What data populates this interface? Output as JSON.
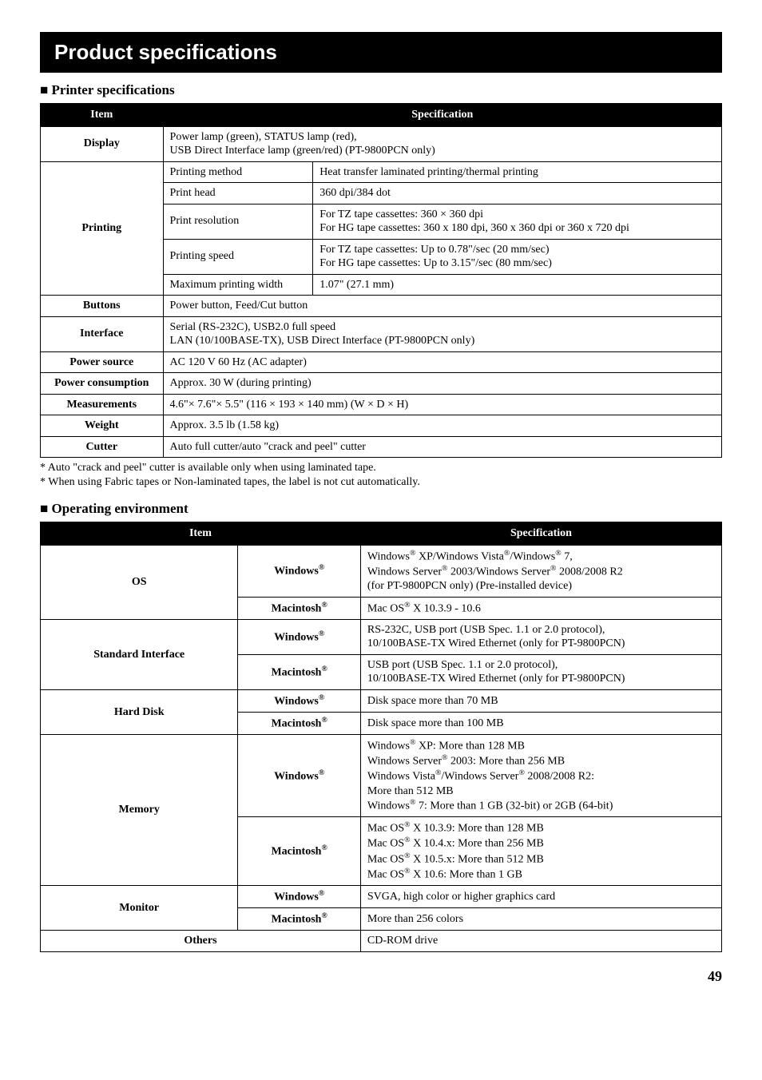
{
  "title": "Product specifications",
  "page_number": "49",
  "sections": {
    "printer": {
      "heading": "Printer specifications",
      "head_item": "Item",
      "head_spec": "Specification",
      "rows": {
        "display": {
          "label": "Display",
          "value": "Power lamp (green), STATUS lamp (red),\nUSB Direct Interface lamp (green/red) (PT-9800PCN only)"
        },
        "printing": {
          "label": "Printing",
          "method": {
            "label": "Printing method",
            "value": "Heat transfer laminated printing/thermal printing"
          },
          "head": {
            "label": "Print head",
            "value": "360 dpi/384 dot"
          },
          "res": {
            "label": "Print resolution",
            "value": "For TZ tape cassettes: 360 × 360 dpi\nFor HG tape cassettes: 360 x 180 dpi, 360 x 360 dpi or 360 x 720 dpi"
          },
          "speed": {
            "label": "Printing speed",
            "value": "For TZ tape cassettes: Up to 0.78\"/sec (20 mm/sec)\nFor HG tape cassettes: Up to 3.15\"/sec (80 mm/sec)"
          },
          "maxwidth": {
            "label": "Maximum printing width",
            "value": "1.07\" (27.1 mm)"
          }
        },
        "buttons": {
          "label": "Buttons",
          "value": "Power button, Feed/Cut button"
        },
        "interface": {
          "label": "Interface",
          "value": "Serial (RS-232C), USB2.0 full speed\nLAN (10/100BASE-TX), USB Direct Interface (PT-9800PCN only)"
        },
        "power_source": {
          "label": "Power source",
          "value": "AC 120 V 60 Hz (AC adapter)"
        },
        "power_cons": {
          "label": "Power consumption",
          "value": "Approx. 30 W (during printing)"
        },
        "measurements": {
          "label": "Measurements",
          "value": "4.6\"× 7.6\"× 5.5\" (116 × 193 × 140 mm) (W × D × H)"
        },
        "weight": {
          "label": "Weight",
          "value": "Approx. 3.5 lb (1.58 kg)"
        },
        "cutter": {
          "label": "Cutter",
          "value": "Auto full cutter/auto \"crack and peel\" cutter"
        }
      },
      "footnotes": [
        "* Auto \"crack and peel\" cutter is available only when using laminated tape.",
        "* When using Fabric tapes or Non-laminated tapes, the label is not cut automatically."
      ]
    },
    "env": {
      "heading": "Operating environment",
      "head_item": "Item",
      "head_spec": "Specification",
      "labels": {
        "win": "Windows®",
        "mac": "Macintosh®"
      },
      "rows": {
        "os": {
          "label": "OS",
          "win": "Windows® XP/Windows Vista®/Windows® 7,\nWindows Server® 2003/Windows Server® 2008/2008 R2\n(for PT-9800PCN only) (Pre-installed device)",
          "mac": "Mac OS® X 10.3.9 - 10.6"
        },
        "iface": {
          "label": "Standard Interface",
          "win": "RS-232C, USB port (USB Spec. 1.1 or 2.0 protocol),\n10/100BASE-TX Wired Ethernet (only for PT-9800PCN)",
          "mac": "USB port (USB Spec. 1.1 or 2.0 protocol),\n10/100BASE-TX Wired Ethernet (only for PT-9800PCN)"
        },
        "hdd": {
          "label": "Hard Disk",
          "win": "Disk space more than 70 MB",
          "mac": "Disk space more than 100 MB"
        },
        "mem": {
          "label": "Memory",
          "win": "Windows® XP: More than 128 MB\nWindows Server® 2003: More than 256 MB\nWindows Vista®/Windows Server® 2008/2008 R2:\nMore than 512 MB\nWindows® 7: More than 1 GB (32-bit) or 2GB (64-bit)",
          "mac": "Mac OS® X 10.3.9: More than 128 MB\nMac OS® X 10.4.x: More than 256 MB\nMac OS® X 10.5.x: More than 512 MB\nMac OS® X 10.6: More than 1 GB"
        },
        "monitor": {
          "label": "Monitor",
          "win": "SVGA, high color or higher graphics card",
          "mac": "More than 256 colors"
        },
        "others": {
          "label": "Others",
          "value": "CD-ROM drive"
        }
      }
    }
  }
}
